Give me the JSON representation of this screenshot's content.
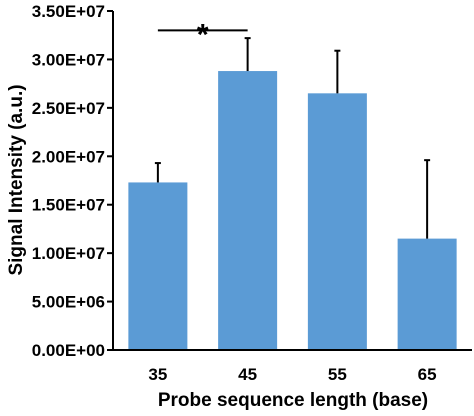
{
  "chart_data": {
    "type": "bar",
    "title": "",
    "xlabel": "Probe sequence length (base)",
    "ylabel": "Signal Intensity (a.u.)",
    "categories": [
      "35",
      "45",
      "55",
      "65"
    ],
    "values": [
      17300000,
      28800000,
      26500000,
      11500000
    ],
    "error_upper": [
      2000000,
      3400000,
      4400000,
      8100000
    ],
    "ylim": [
      0,
      35000000
    ],
    "yticks": [
      0,
      5000000,
      10000000,
      15000000,
      20000000,
      25000000,
      30000000,
      35000000
    ],
    "ytick_labels": [
      "0.00E+00",
      "5.00E+06",
      "1.00E+07",
      "1.50E+07",
      "2.00E+07",
      "2.50E+07",
      "3.00E+07",
      "3.50E+07"
    ],
    "bar_color": "#5b9bd5",
    "grid": false,
    "legend": "none",
    "significance": {
      "label": "*",
      "from": "35",
      "to": "45",
      "value": 33000000
    }
  }
}
